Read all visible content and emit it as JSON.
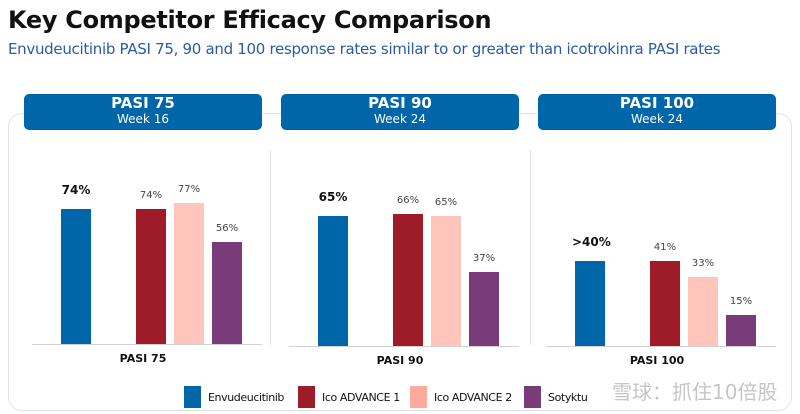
{
  "header": {
    "title": "Key Competitor Efficacy Comparison",
    "subtitle": "Envudeucitinib PASI 75, 90 and 100 response rates similar to or greater than icotrokinra PASI rates"
  },
  "colors": {
    "header_bg": "#0066aa",
    "series": [
      "#0066aa",
      "#9e1b2a",
      "#ffc4bc",
      "#7a3b7a"
    ]
  },
  "chart_data": [
    {
      "type": "bar",
      "title": "PASI 75",
      "subtitle": "Week 16",
      "xlabel": "PASI 75",
      "series_names": [
        "Envudeucitinib",
        "Ico ADVANCE 1",
        "Ico ADVANCE 2",
        "Sotyktu"
      ],
      "values": [
        74,
        74,
        77,
        56
      ],
      "labels": [
        "74%",
        "74%",
        "77%",
        "56%"
      ]
    },
    {
      "type": "bar",
      "title": "PASI 90",
      "subtitle": "Week 24",
      "xlabel": "PASI 90",
      "series_names": [
        "Envudeucitinib",
        "Ico ADVANCE 1",
        "Ico ADVANCE 2",
        "Sotyktu"
      ],
      "values": [
        65,
        66,
        65,
        37
      ],
      "labels": [
        "65%",
        "66%",
        "65%",
        "37%"
      ]
    },
    {
      "type": "bar",
      "title": "PASI 100",
      "subtitle": "Week 24",
      "xlabel": "PASI 100",
      "series_names": [
        "Envudeucitinib",
        "Ico ADVANCE 1",
        "Ico ADVANCE 2",
        "Sotyktu"
      ],
      "values": [
        41,
        41,
        33,
        15
      ],
      "labels": [
        ">40%",
        "41%",
        "33%",
        "15%"
      ]
    }
  ],
  "legend": [
    "Envudeucitinib",
    "Ico ADVANCE 1",
    "Ico ADVANCE 2",
    "Sotyktu"
  ],
  "watermark": "雪球：抓住10倍股"
}
